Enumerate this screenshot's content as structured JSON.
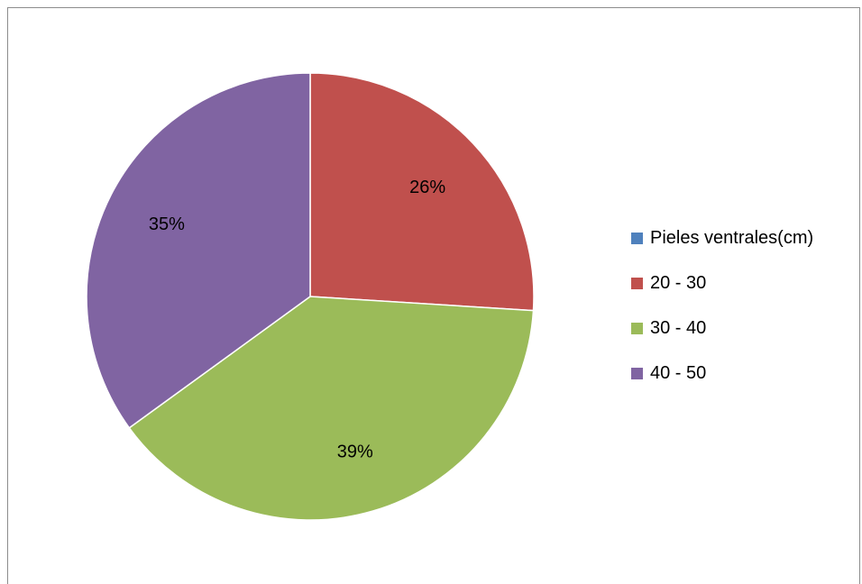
{
  "chart_data": {
    "type": "pie",
    "title": "",
    "categories": [
      "Pieles ventrales(cm)",
      "20 - 30",
      "30 - 40",
      "40 - 50"
    ],
    "values": [
      0,
      26,
      39,
      35
    ],
    "data_labels": [
      "",
      "26%",
      "39%",
      "35%"
    ],
    "colors": [
      "#4f81bd",
      "#c0504d",
      "#9bbb59",
      "#8064a2"
    ],
    "start_angle": "12 o'clock",
    "direction": "clockwise",
    "legend": "right"
  }
}
